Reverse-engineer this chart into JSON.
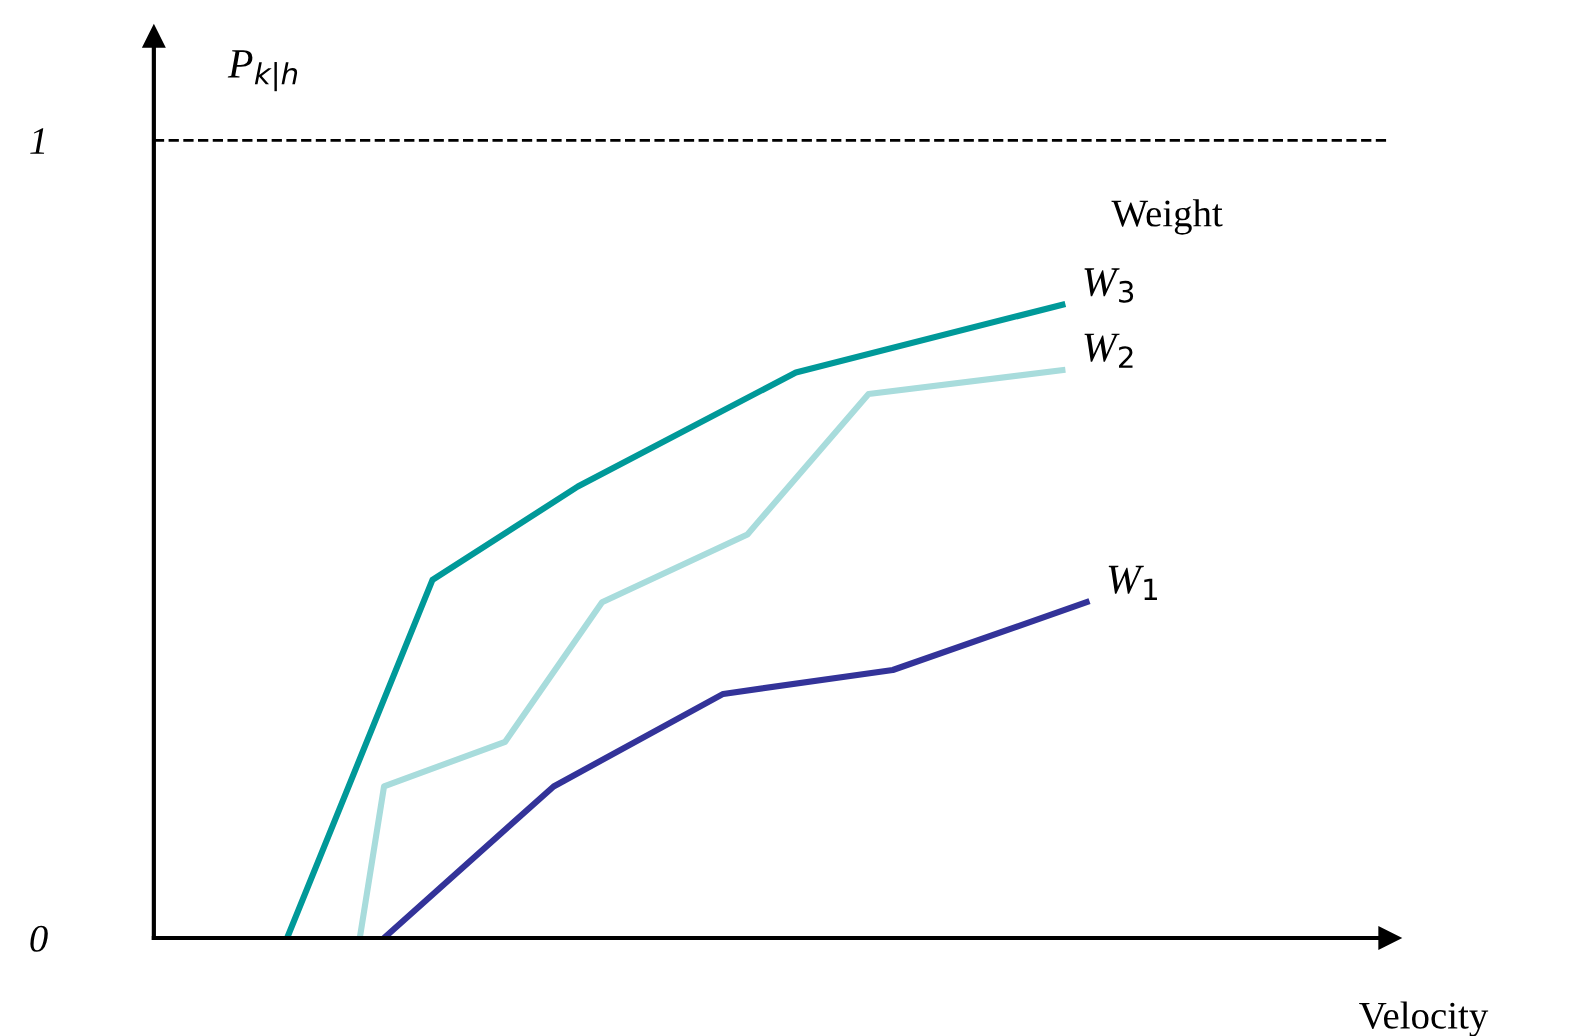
{
  "chart_data": {
    "type": "line",
    "xlabel": "Velocity",
    "ylabel": "P$_{k|h}$",
    "annotations": [
      "Weight"
    ],
    "categories": [
      null,
      null,
      null,
      null,
      null,
      null,
      null,
      null,
      null,
      null,
      null,
      null,
      null,
      null,
      null,
      null,
      null,
      null,
      null,
      null,
      null,
      null,
      null,
      null,
      null,
      null,
      null,
      null,
      null,
      null,
      null,
      null,
      null,
      null,
      null,
      null,
      null,
      null,
      null,
      null,
      null,
      null,
      null,
      null,
      null,
      null,
      null,
      null,
      null,
      null,
      null
    ],
    "ylim": [
      0,
      1.13
    ],
    "yticks": [
      0,
      1
    ],
    "legend": false,
    "grid": false,
    "marker": "none",
    "line_style": "solid",
    "ref_lines": [
      {
        "axis": "y",
        "value": 1,
        "label": null,
        "color": "#000000",
        "line_style": "dashed"
      }
    ],
    "series": [
      {
        "name": "W$_{1}$",
        "color": "#333399",
        "values": [
          null,
          null,
          null,
          null,
          null,
          null,
          null,
          null,
          null,
          0,
          null,
          null,
          null,
          null,
          null,
          null,
          0.19,
          null,
          null,
          null,
          null,
          null,
          null,
          0.306,
          null,
          null,
          null,
          null,
          null,
          null,
          0.336,
          null,
          null,
          null,
          null,
          null,
          null,
          null,
          0.421,
          null,
          null,
          null,
          null,
          null,
          null,
          null,
          null,
          null,
          null,
          null,
          null
        ]
      },
      {
        "name": "W$_{2}$",
        "color": "#a8dcdc",
        "values": [
          null,
          null,
          null,
          null,
          null,
          null,
          null,
          null,
          0,
          0.19,
          null,
          null,
          null,
          null,
          0.246,
          null,
          null,
          null,
          0.421,
          null,
          null,
          null,
          null,
          null,
          0.506,
          null,
          null,
          null,
          null,
          0.682,
          null,
          null,
          null,
          null,
          null,
          null,
          null,
          0.712,
          null,
          null,
          null,
          null,
          null,
          null,
          null,
          null,
          null,
          null,
          null,
          null,
          null
        ]
      },
      {
        "name": "W$_{3}$",
        "color": "#009999",
        "values": [
          null,
          null,
          null,
          null,
          null,
          0,
          null,
          null,
          null,
          null,
          null,
          0.449,
          null,
          null,
          null,
          null,
          null,
          0.566,
          null,
          null,
          null,
          null,
          null,
          null,
          null,
          null,
          0.709,
          null,
          null,
          null,
          null,
          null,
          null,
          null,
          null,
          null,
          null,
          0.794,
          null,
          null,
          null,
          null,
          null,
          null,
          null,
          null,
          null,
          null,
          null,
          null,
          null
        ]
      }
    ]
  }
}
